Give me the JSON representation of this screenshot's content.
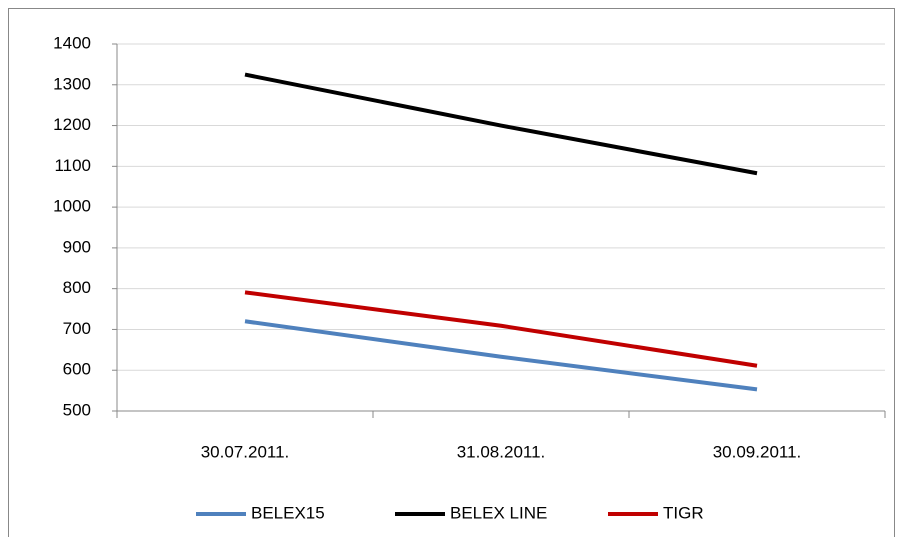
{
  "chart_data": {
    "type": "line",
    "categories": [
      "30.07.2011.",
      "31.08.2011.",
      "30.09.2011."
    ],
    "series": [
      {
        "name": "BELEX15",
        "color": "#4f81bd",
        "values": [
          720,
          633,
          553
        ]
      },
      {
        "name": "BELEX LINE",
        "color": "#000000",
        "values": [
          1325,
          1200,
          1083
        ]
      },
      {
        "name": "TIGR",
        "color": "#c00000",
        "values": [
          791,
          709,
          611
        ]
      }
    ],
    "ylim": [
      500,
      1400
    ],
    "yticks": [
      500,
      600,
      700,
      800,
      900,
      1000,
      1100,
      1200,
      1300,
      1400
    ],
    "grid": true,
    "legend": "bottom"
  }
}
